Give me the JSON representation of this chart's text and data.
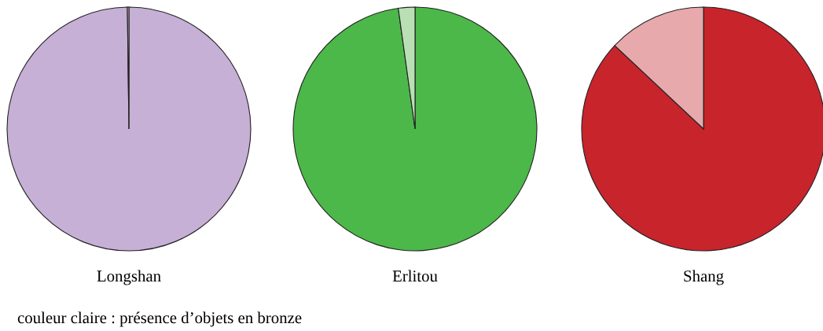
{
  "chart_data": [
    {
      "type": "pie",
      "title": "Longshan",
      "categories": [
        null,
        null
      ],
      "values": [
        99.8,
        0.2
      ],
      "colors": [
        "#c6b0d6",
        "#e3d8eb"
      ],
      "annotations": [
        "couleur claire : présence d’objets en bronze"
      ]
    },
    {
      "type": "pie",
      "title": "Erlitou",
      "categories": [
        null,
        null
      ],
      "values": [
        97.8,
        2.2
      ],
      "colors": [
        "#4cb84a",
        "#b9e0b4"
      ]
    },
    {
      "type": "pie",
      "title": "Shang",
      "categories": [
        null,
        null
      ],
      "values": [
        87,
        13
      ],
      "colors": [
        "#c8242c",
        "#e8a9ac"
      ]
    }
  ]
}
